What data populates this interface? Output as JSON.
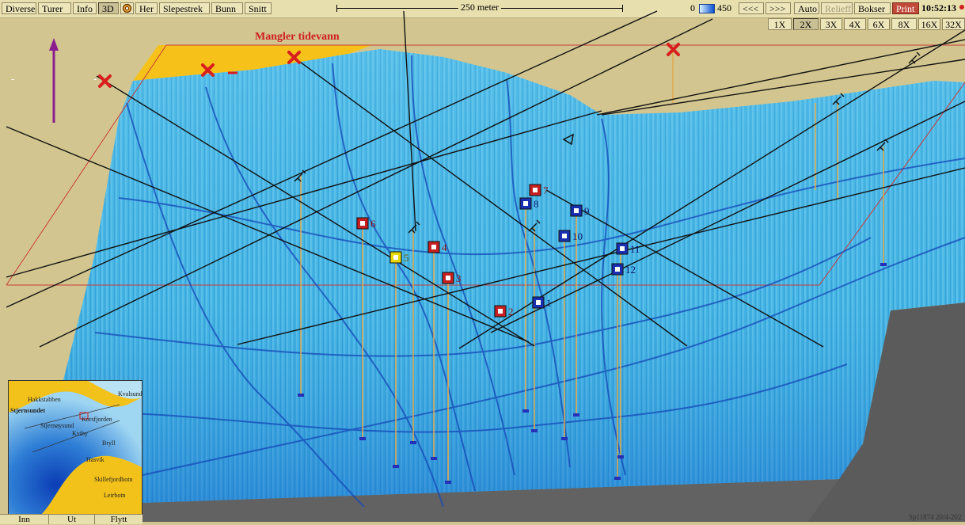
{
  "toolbar": {
    "menu": [
      "Diverse",
      "Turer",
      "Info",
      "3D",
      "Her",
      "Slepestrek",
      "Bunn",
      "Snitt"
    ],
    "scale_label": "250 meter",
    "depth_min": "0",
    "depth_max": "450",
    "prev": "<<<",
    "next": ">>>",
    "auto": "Auto",
    "relieff": "Relieff",
    "bokser": "Bokser",
    "print": "Print",
    "clock": "10:52:13"
  },
  "zoom": [
    "1X",
    "2X",
    "3X",
    "4X",
    "6X",
    "8X",
    "16X",
    "32X"
  ],
  "zoom_selected": "2X",
  "warning": "Mangler tidevann",
  "markers": [
    {
      "n": "1",
      "color": "blue"
    },
    {
      "n": "2",
      "color": "red"
    },
    {
      "n": "3",
      "color": "red"
    },
    {
      "n": "4",
      "color": "red"
    },
    {
      "n": "5",
      "color": "yellow"
    },
    {
      "n": "6",
      "color": "red"
    },
    {
      "n": "7",
      "color": "red"
    },
    {
      "n": "8",
      "color": "blue"
    },
    {
      "n": "9",
      "color": "blue"
    },
    {
      "n": "10",
      "color": "blue"
    },
    {
      "n": "11",
      "color": "blue"
    },
    {
      "n": "12",
      "color": "blue"
    }
  ],
  "minimap": {
    "labels": [
      "Hakkstabben",
      "Stjernsundet",
      "Stjernøysund",
      "Kvalsund",
      "Korsfjorden",
      "Bryll",
      "Hasvik",
      "Skillefjordbotn",
      "Leirbotn",
      "Kviby"
    ],
    "buttons": [
      "Inn",
      "Ut",
      "Flytt"
    ]
  },
  "footer": "Sp11874 20/4-202",
  "colors": {
    "terrain": "#3ab0e0",
    "land": "#d2c58f",
    "shallow": "#f6c21a",
    "warning": "#d01e1e",
    "marker_red": "#c82020",
    "marker_blue": "#1a2fb0",
    "marker_yellow": "#e8d800"
  }
}
